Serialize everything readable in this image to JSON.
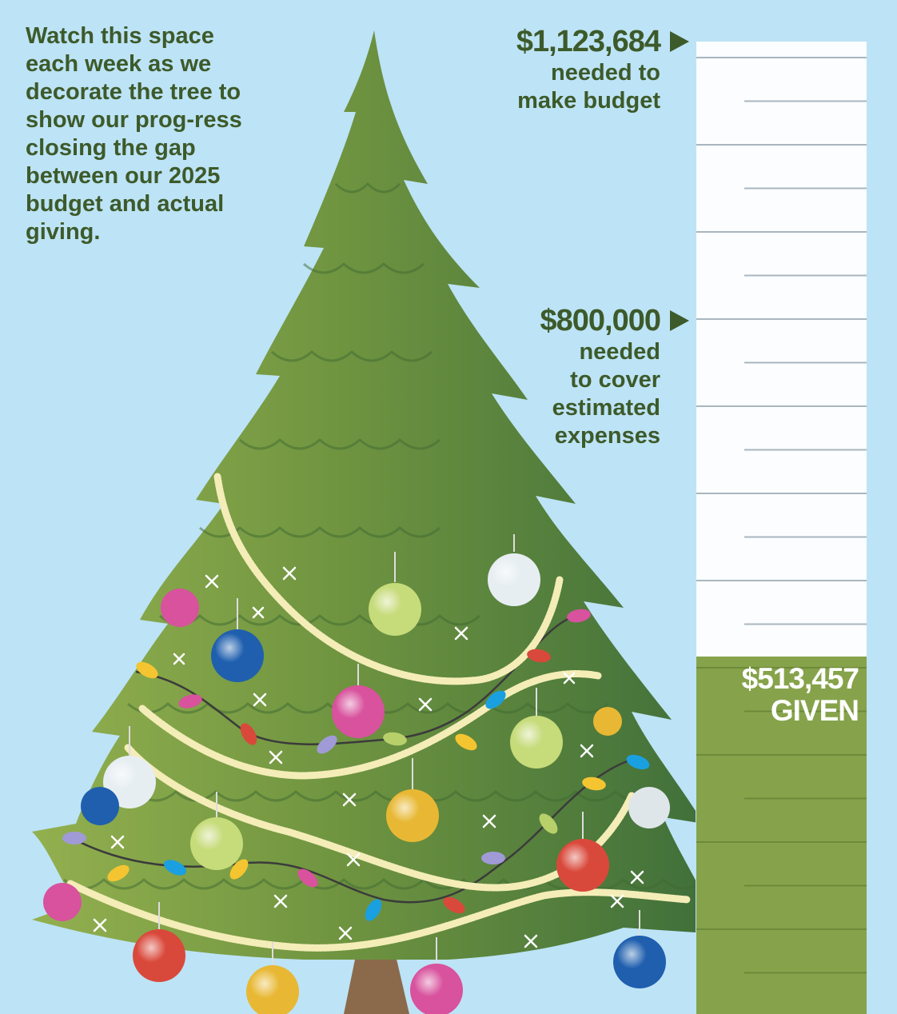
{
  "intro_text": "Watch this space each week as we decorate the tree to show our prog-ress closing the gap between our 2025 budget and actual giving.",
  "goal": {
    "amount": "$1,123,684",
    "note": "needed to\nmake budget"
  },
  "expenses": {
    "amount": "$800,000",
    "note": "needed\nto cover\nestimated\nexpenses"
  },
  "given": {
    "amount": "$513,457",
    "label": "GIVEN"
  },
  "progress": {
    "given_value": 513457,
    "scale_max": 1123684,
    "expenses_value": 800000
  },
  "colors": {
    "background": "#bde3f6",
    "text": "#3d5a2a",
    "fill": "#86a34b",
    "empty": "#fbfdfe",
    "tree_light": "#93b04f",
    "tree_dark": "#3e6e3a"
  },
  "icons": [
    "christmas-tree-icon",
    "arrow-right-icon"
  ]
}
